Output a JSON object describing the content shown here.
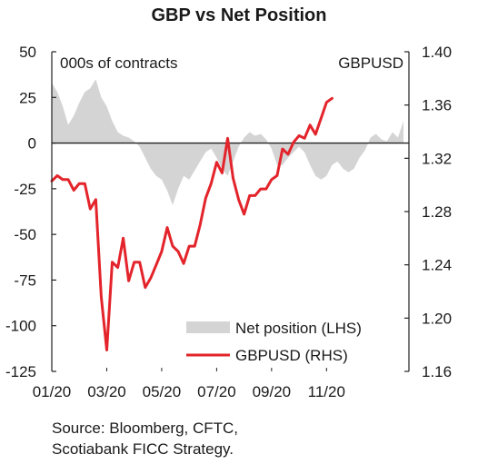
{
  "chart_data": {
    "type": "area+line",
    "title": "GBP vs Net Position",
    "left_axis_label": "000s of contracts",
    "right_axis_label": "GBPUSD",
    "left_ylim": [
      -125,
      50
    ],
    "left_ticks": [
      "50",
      "25",
      "0",
      "-25",
      "-50",
      "-75",
      "-100",
      "-125"
    ],
    "right_ylim": [
      1.16,
      1.4
    ],
    "right_ticks": [
      "1.40",
      "1.36",
      "1.32",
      "1.28",
      "1.24",
      "1.20",
      "1.16"
    ],
    "x_ticks": [
      "01/20",
      "03/20",
      "05/20",
      "07/20",
      "09/20",
      "11/20"
    ],
    "legend": {
      "position": "bottom-right",
      "entries": [
        "Net position (LHS)",
        "GBPUSD (RHS)"
      ]
    },
    "colors": {
      "net_position": "#d4d4d4",
      "gbpusd": "#e3242b",
      "axis": "#222222"
    },
    "series": [
      {
        "name": "Net position (LHS)",
        "axis": "left",
        "type": "area",
        "points": [
          [
            0.0,
            33
          ],
          [
            0.2,
            28
          ],
          [
            0.4,
            20
          ],
          [
            0.6,
            10
          ],
          [
            0.8,
            15
          ],
          [
            1.0,
            22
          ],
          [
            1.2,
            28
          ],
          [
            1.4,
            30
          ],
          [
            1.6,
            35
          ],
          [
            1.8,
            25
          ],
          [
            2.0,
            20
          ],
          [
            2.2,
            12
          ],
          [
            2.4,
            6
          ],
          [
            2.6,
            4
          ],
          [
            2.8,
            3
          ],
          [
            3.0,
            1
          ],
          [
            3.2,
            -2
          ],
          [
            3.4,
            -8
          ],
          [
            3.6,
            -14
          ],
          [
            3.8,
            -18
          ],
          [
            4.0,
            -20
          ],
          [
            4.2,
            -26
          ],
          [
            4.4,
            -34
          ],
          [
            4.6,
            -25
          ],
          [
            4.8,
            -18
          ],
          [
            5.0,
            -20
          ],
          [
            5.2,
            -15
          ],
          [
            5.4,
            -10
          ],
          [
            5.6,
            -5
          ],
          [
            5.8,
            -3
          ],
          [
            6.0,
            -8
          ],
          [
            6.2,
            -14
          ],
          [
            6.4,
            -18
          ],
          [
            6.6,
            -10
          ],
          [
            6.8,
            -2
          ],
          [
            7.0,
            3
          ],
          [
            7.2,
            6
          ],
          [
            7.4,
            4
          ],
          [
            7.6,
            5
          ],
          [
            7.8,
            2
          ],
          [
            8.0,
            -3
          ],
          [
            8.2,
            -12
          ],
          [
            8.4,
            -12
          ],
          [
            8.6,
            -8
          ],
          [
            8.8,
            -5
          ],
          [
            9.0,
            -2
          ],
          [
            9.2,
            -5
          ],
          [
            9.4,
            -12
          ],
          [
            9.6,
            -18
          ],
          [
            9.8,
            -20
          ],
          [
            10.0,
            -18
          ],
          [
            10.2,
            -12
          ],
          [
            10.4,
            -10
          ],
          [
            10.6,
            -14
          ],
          [
            10.8,
            -16
          ],
          [
            11.0,
            -14
          ],
          [
            11.2,
            -8
          ],
          [
            11.4,
            -4
          ],
          [
            11.6,
            3
          ],
          [
            11.8,
            5
          ],
          [
            12.0,
            2
          ],
          [
            12.2,
            1
          ],
          [
            12.4,
            6
          ],
          [
            12.6,
            3
          ],
          [
            12.8,
            12
          ]
        ]
      },
      {
        "name": "GBPUSD (RHS)",
        "axis": "right",
        "type": "line",
        "points": [
          [
            0.0,
            1.303
          ],
          [
            0.2,
            1.307
          ],
          [
            0.4,
            1.304
          ],
          [
            0.6,
            1.304
          ],
          [
            0.8,
            1.296
          ],
          [
            1.0,
            1.301
          ],
          [
            1.2,
            1.301
          ],
          [
            1.4,
            1.282
          ],
          [
            1.6,
            1.289
          ],
          [
            1.8,
            1.216
          ],
          [
            2.0,
            1.176
          ],
          [
            2.2,
            1.242
          ],
          [
            2.4,
            1.238
          ],
          [
            2.6,
            1.26
          ],
          [
            2.8,
            1.228
          ],
          [
            3.0,
            1.242
          ],
          [
            3.2,
            1.242
          ],
          [
            3.4,
            1.223
          ],
          [
            3.6,
            1.23
          ],
          [
            3.8,
            1.24
          ],
          [
            4.0,
            1.25
          ],
          [
            4.2,
            1.268
          ],
          [
            4.4,
            1.254
          ],
          [
            4.6,
            1.25
          ],
          [
            4.8,
            1.241
          ],
          [
            5.0,
            1.254
          ],
          [
            5.2,
            1.254
          ],
          [
            5.4,
            1.27
          ],
          [
            5.6,
            1.29
          ],
          [
            5.8,
            1.301
          ],
          [
            6.0,
            1.317
          ],
          [
            6.2,
            1.309
          ],
          [
            6.4,
            1.335
          ],
          [
            6.6,
            1.305
          ],
          [
            6.8,
            1.289
          ],
          [
            7.0,
            1.278
          ],
          [
            7.2,
            1.292
          ],
          [
            7.4,
            1.292
          ],
          [
            7.6,
            1.297
          ],
          [
            7.8,
            1.297
          ],
          [
            8.0,
            1.304
          ],
          [
            8.2,
            1.307
          ],
          [
            8.4,
            1.327
          ],
          [
            8.6,
            1.323
          ],
          [
            8.8,
            1.332
          ],
          [
            9.0,
            1.337
          ],
          [
            9.2,
            1.335
          ],
          [
            9.4,
            1.345
          ],
          [
            9.6,
            1.338
          ],
          [
            9.8,
            1.35
          ],
          [
            10.0,
            1.362
          ],
          [
            10.2,
            1.365
          ]
        ]
      }
    ]
  },
  "source_lines": [
    "Source: Bloomberg, CFTC,",
    "Scotiabank FICC  Strategy."
  ]
}
